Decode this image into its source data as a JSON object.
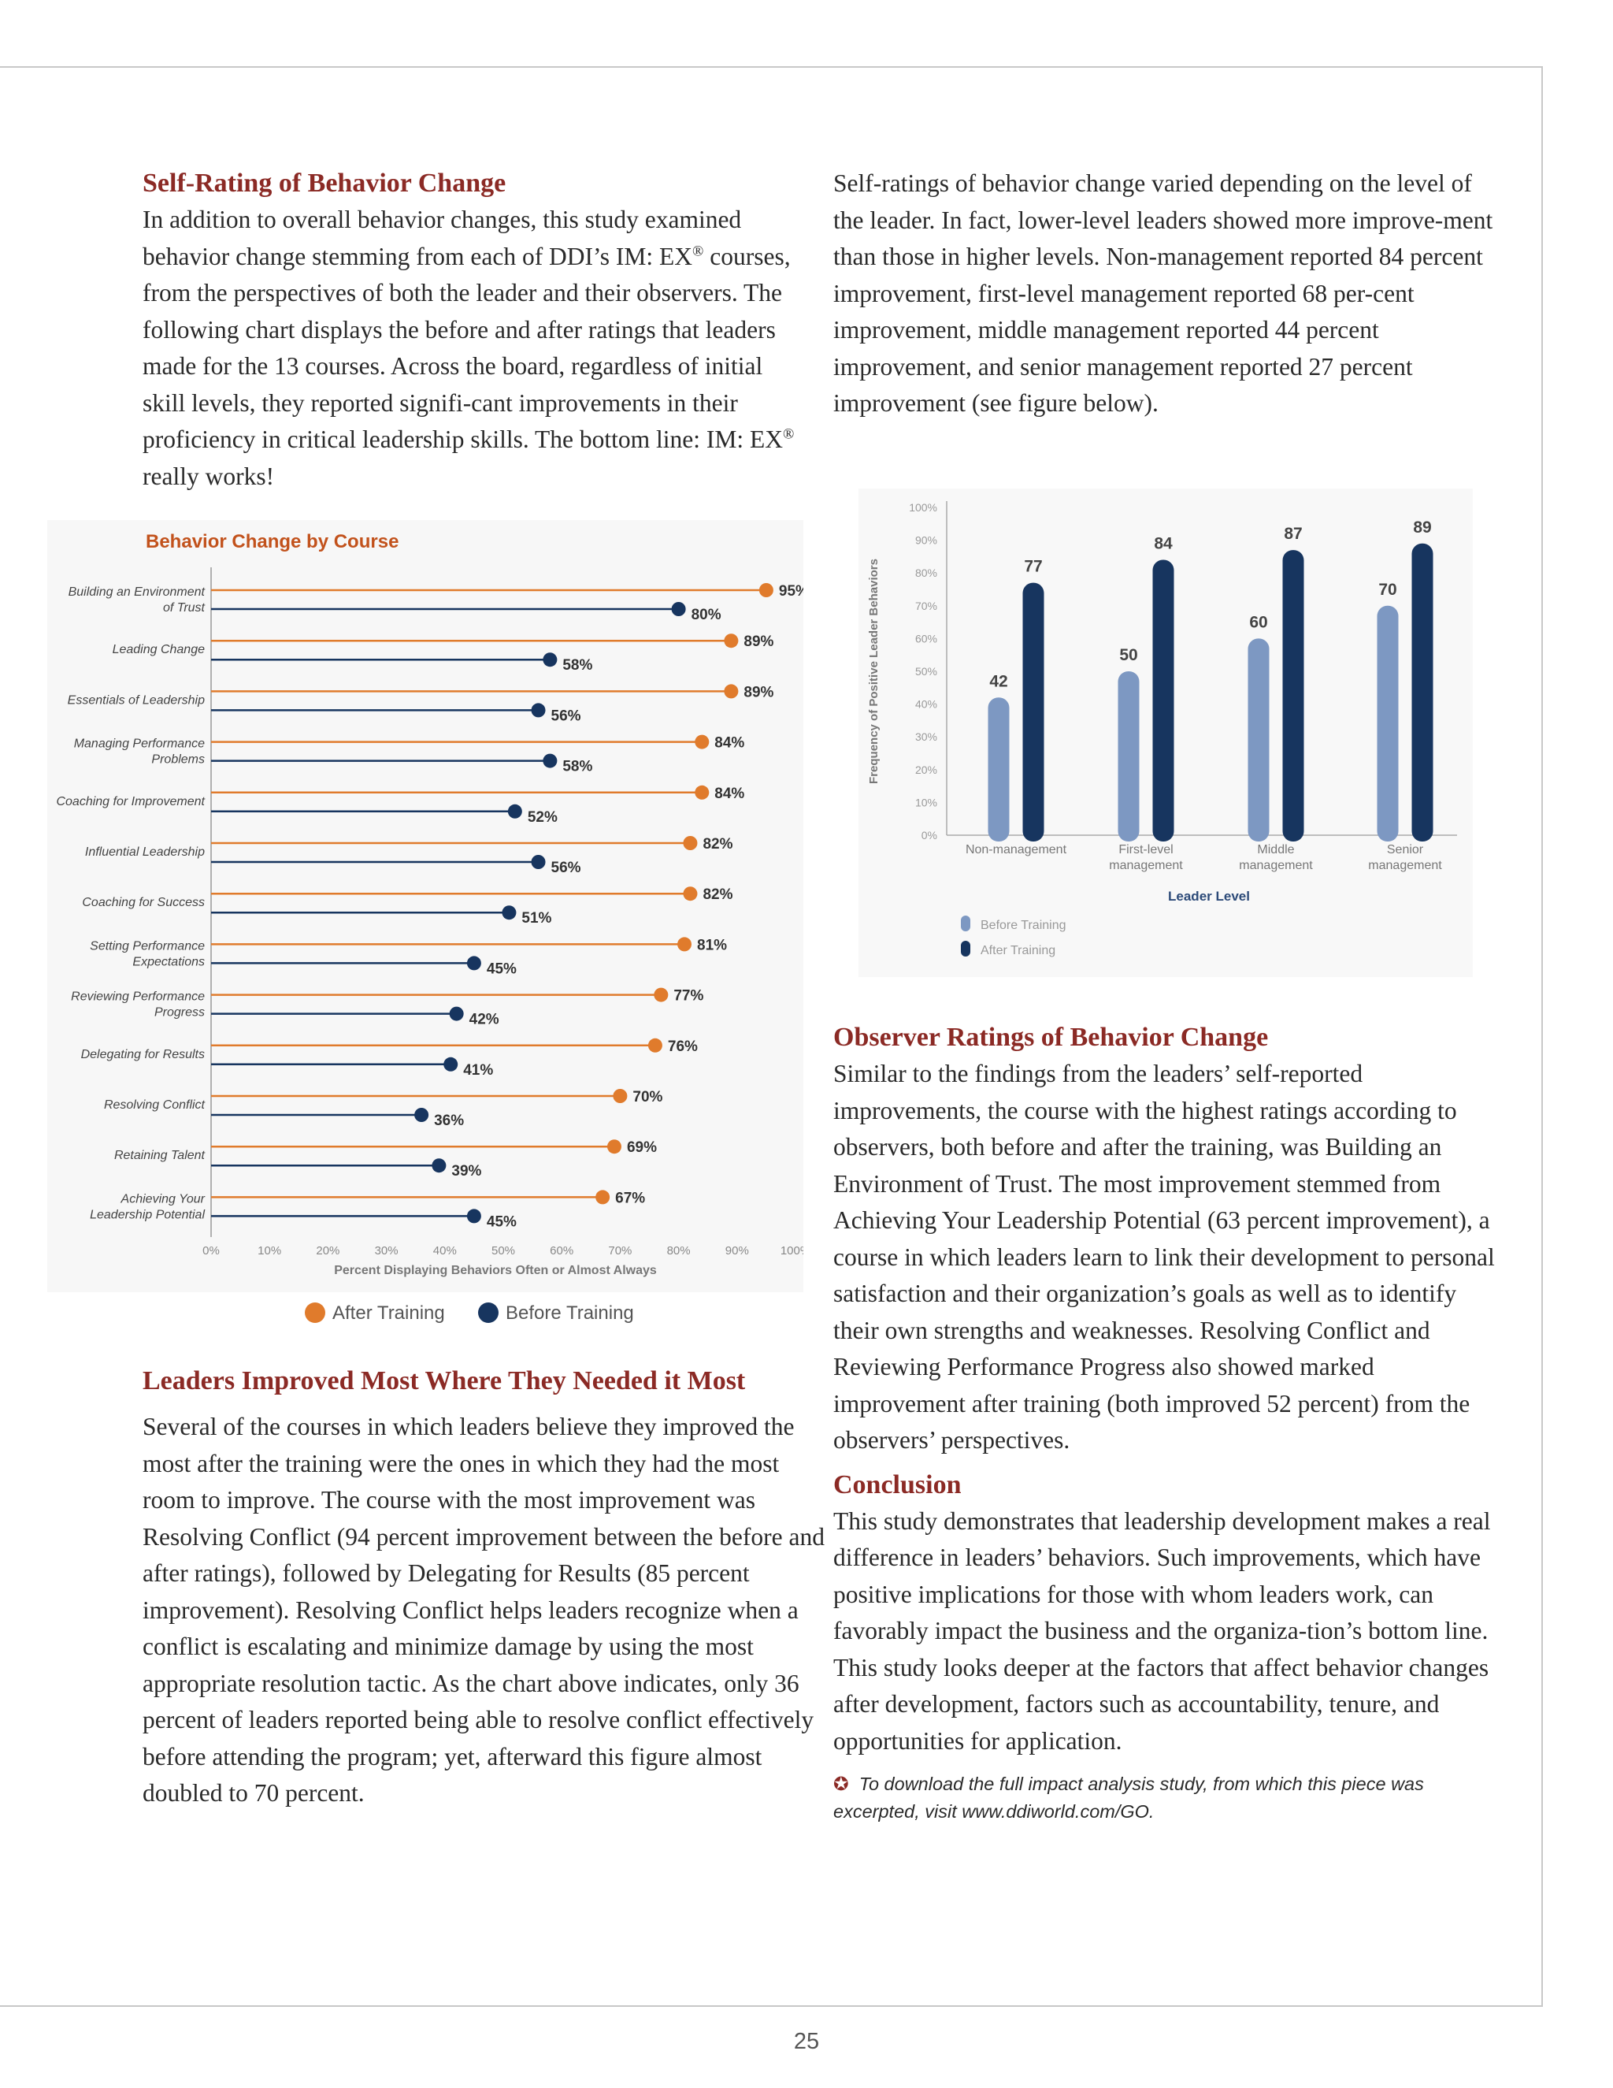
{
  "left": {
    "heading1": "Self-Rating of Behavior Change",
    "para1_a": "In addition to overall behavior changes, this study examined behavior change stemming from each of DDI’s IM: EX",
    "para1_b": " courses, from the perspectives of both the leader and their observers.  The following chart displays the before and after ratings that leaders made for the 13 courses. Across the board, regardless of initial skill levels, they reported signifi-cant improvements in their proficiency in critical leadership skills. The bottom line: IM: EX",
    "para1_c": " really works!",
    "registered": "®",
    "heading2": "Leaders Improved Most Where They Needed it Most",
    "para2": "Several of the courses in which leaders believe they improved the most after the training were the ones in which they had the most room to improve.  The course with the most improvement was Resolving Conflict (94 percent improvement between the before and after ratings), followed by Delegating for Results (85 percent improvement).  Resolving Conflict helps leaders recognize when a conflict is escalating and minimize damage by using the most appropriate resolution tactic.  As the chart above indicates, only 36 percent of leaders reported being able to resolve conflict effectively before attending the program; yet, afterward this figure almost doubled to 70 percent."
  },
  "right": {
    "para1": "Self-ratings of behavior change varied depending on the level of the leader. In fact, lower-level leaders showed more improve-ment than those in higher levels. Non-management reported 84 percent improvement, first-level management reported 68 per-cent improvement, middle management reported 44 percent improvement, and senior management reported 27 percent improvement (see figure below).",
    "heading3": "Observer Ratings of Behavior Change",
    "para3": "Similar to the findings from the leaders’ self-reported improvements, the course with the highest ratings according to observers, both before and after the training, was Building an Environment of Trust.  The most improvement stemmed from Achieving Your Leadership Potential (63 percent improvement), a course in which leaders learn to link their development to personal satisfaction and their organization’s goals as well as to identify their own strengths and weaknesses. Resolving Conflict and Reviewing Performance Progress also showed marked improvement after training (both improved 52 percent) from the observers’ perspectives.",
    "heading4": "Conclusion",
    "para4": "This study demonstrates that leadership development makes a real difference in leaders’ behaviors. Such improvements, which have positive implications for those with whom leaders work, can favorably impact the business and the organiza-tion’s bottom line. This study looks deeper at the factors that affect behavior changes after development, factors such as accountability, tenure, and opportunities for application.",
    "note_icon": "star-icon",
    "note": "To download the full impact analysis study, from which this piece was excerpted, visit www.ddiworld.com/GO."
  },
  "page_number": "25",
  "colors": {
    "after": "#e07b2c",
    "before": "#17355f",
    "before_light": "#7d98c2",
    "heading": "#8b2a25",
    "chart_title": "#c2521c"
  },
  "chart_data": [
    {
      "type": "dot-plot",
      "title": "Behavior Change by Course",
      "xlabel": "Percent Displaying Behaviors Often or Almost Always",
      "xlim": [
        0,
        100
      ],
      "xticks": [
        "0%",
        "10%",
        "20%",
        "30%",
        "40%",
        "50%",
        "60%",
        "70%",
        "80%",
        "90%",
        "100%"
      ],
      "categories": [
        [
          "Building an Environment",
          "of Trust"
        ],
        [
          "Leading Change"
        ],
        [
          "Essentials of Leadership"
        ],
        [
          "Managing Performance",
          "Problems"
        ],
        [
          "Coaching for Improvement"
        ],
        [
          "Influential Leadership"
        ],
        [
          "Coaching for Success"
        ],
        [
          "Setting Performance",
          "Expectations"
        ],
        [
          "Reviewing Performance",
          "Progress"
        ],
        [
          "Delegating for Results"
        ],
        [
          "Resolving Conflict"
        ],
        [
          "Retaining Talent"
        ],
        [
          "Achieving Your",
          "Leadership Potential"
        ]
      ],
      "series": [
        {
          "name": "After Training",
          "values": [
            95,
            89,
            89,
            84,
            84,
            82,
            82,
            81,
            77,
            76,
            70,
            69,
            67
          ]
        },
        {
          "name": "Before Training",
          "values": [
            80,
            58,
            56,
            58,
            52,
            56,
            51,
            45,
            42,
            41,
            36,
            39,
            45
          ]
        }
      ],
      "legend": "bottom"
    },
    {
      "type": "bar",
      "ylabel": "Frequency of Positive Leader Behaviors",
      "xlabel": "Leader Level",
      "ylim": [
        0,
        100
      ],
      "yticks": [
        "0%",
        "10%",
        "20%",
        "30%",
        "40%",
        "50%",
        "60%",
        "70%",
        "80%",
        "90%",
        "100%"
      ],
      "categories": [
        [
          "Non-management"
        ],
        [
          "First-level",
          "management"
        ],
        [
          "Middle",
          "management"
        ],
        [
          "Senior",
          "management"
        ]
      ],
      "series": [
        {
          "name": "Before Training",
          "values": [
            42,
            50,
            60,
            70
          ]
        },
        {
          "name": "After Training",
          "values": [
            77,
            84,
            87,
            89
          ]
        }
      ],
      "legend": "bottom-left"
    }
  ]
}
